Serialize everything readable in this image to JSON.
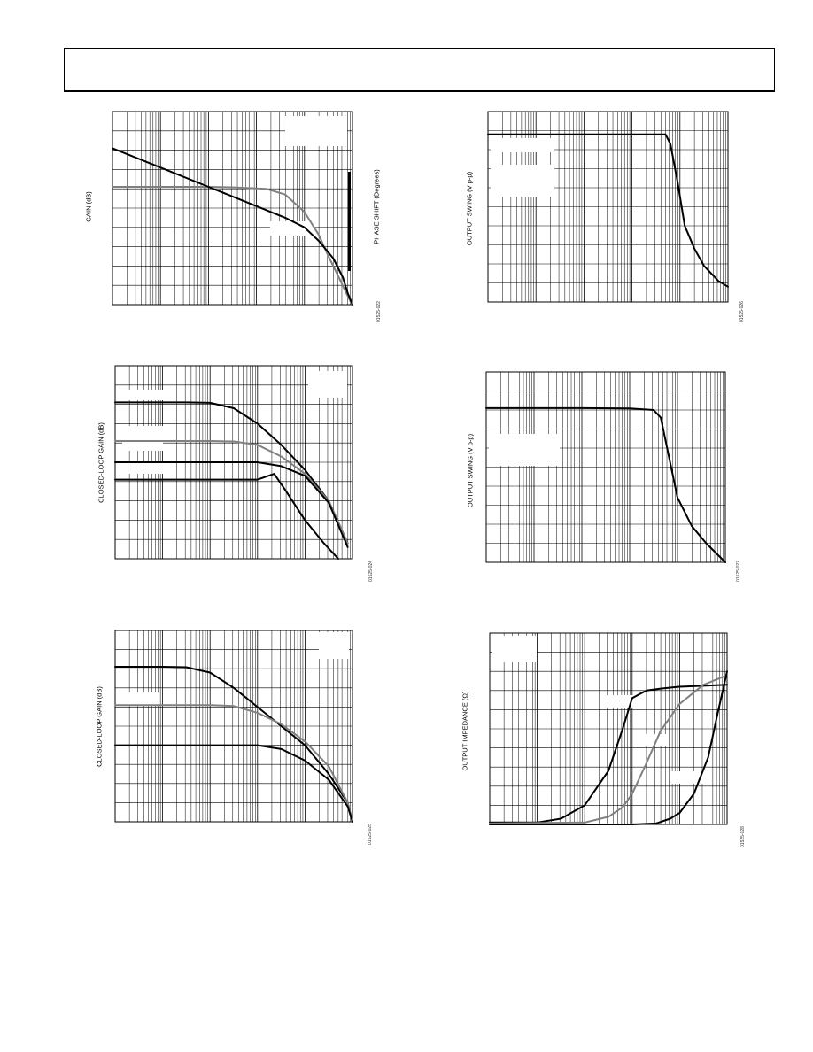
{
  "colors": {
    "ink": "#000000",
    "gray_trace": "#808080",
    "grid": "#000000",
    "blank": "#ffffff"
  },
  "charts": [
    {
      "id": "fig22",
      "ylabel": "GAIN (dB)",
      "y2label": "PHASE SHIFT (Degrees)",
      "figure_no": "01525-022"
    },
    {
      "id": "fig23",
      "ylabel": "CLOSED-LOOP GAIN (dB)",
      "figure_no": "01525-024"
    },
    {
      "id": "fig24",
      "ylabel": "CLOSED-LOOP GAIN (dB)",
      "figure_no": "01525-025"
    },
    {
      "id": "fig26",
      "ylabel": "OUTPUT SWING (V p-p)",
      "figure_no": "01525-026"
    },
    {
      "id": "fig27",
      "ylabel": "OUTPUT SWING (V p-p)",
      "figure_no": "01525-027"
    },
    {
      "id": "fig28",
      "ylabel": "OUTPUT IMPEDANCE (Ω)",
      "figure_no": "01525-028"
    }
  ],
  "chart_data": [
    {
      "type": "line",
      "chart": "fig22",
      "x_scale": "log",
      "xlim": [
        0,
        5
      ],
      "ylim": [
        0,
        10
      ],
      "grid": true,
      "series": [
        {
          "color": "gray",
          "x": [
            0,
            1,
            2,
            2.5,
            3.2,
            3.6,
            4,
            4.3,
            4.5,
            4.7,
            4.85,
            4.95,
            5
          ],
          "y": [
            6.1,
            6.1,
            6.1,
            6.08,
            6.0,
            5.7,
            4.8,
            3.6,
            2.5,
            1.5,
            0.7,
            0.2,
            0
          ]
        },
        {
          "color": "black",
          "x": [
            0,
            1,
            2,
            3,
            3.6,
            4,
            4.3,
            4.6,
            4.8,
            4.9,
            5
          ],
          "y": [
            8.1,
            7.1,
            6.1,
            5.1,
            4.5,
            4.0,
            3.3,
            2.4,
            1.4,
            0.6,
            0
          ]
        }
      ]
    },
    {
      "type": "line",
      "chart": "fig23",
      "x_scale": "log",
      "xlim": [
        0,
        5
      ],
      "ylim": [
        0,
        10
      ],
      "grid": true,
      "series": [
        {
          "color": "black",
          "x": [
            0,
            1,
            1.5,
            2,
            2.5,
            3,
            3.5,
            4,
            4.5,
            4.9
          ],
          "y": [
            8.1,
            8.1,
            8.1,
            8.08,
            7.8,
            7.0,
            5.9,
            4.6,
            3.0,
            0.8
          ]
        },
        {
          "color": "gray",
          "x": [
            0,
            2,
            2.5,
            3,
            3.5,
            4,
            4.5,
            4.9
          ],
          "y": [
            6.1,
            6.1,
            6.08,
            5.9,
            5.3,
            4.4,
            3.0,
            0.8
          ]
        },
        {
          "color": "black",
          "x": [
            0,
            2,
            2.5,
            3,
            3.5,
            4,
            4.5,
            4.9
          ],
          "y": [
            5.0,
            5.0,
            5.0,
            5.0,
            4.8,
            4.3,
            2.9,
            0.6
          ]
        },
        {
          "color": "black",
          "x": [
            0,
            2,
            2.5,
            3,
            3.35,
            3.6,
            4,
            4.4,
            4.7
          ],
          "y": [
            4.1,
            4.1,
            4.1,
            4.1,
            4.4,
            3.5,
            2.0,
            0.8,
            0
          ]
        }
      ]
    },
    {
      "type": "line",
      "chart": "fig24",
      "x_scale": "log",
      "xlim": [
        0,
        5
      ],
      "ylim": [
        0,
        10
      ],
      "grid": true,
      "series": [
        {
          "color": "black",
          "x": [
            0,
            1,
            1.5,
            2,
            2.5,
            3,
            3.5,
            4,
            4.5,
            4.9,
            5
          ],
          "y": [
            8.1,
            8.1,
            8.08,
            7.8,
            7.0,
            6.0,
            5.0,
            4.0,
            2.5,
            1.0,
            0
          ]
        },
        {
          "color": "gray",
          "x": [
            0,
            2,
            2.5,
            3,
            3.5,
            4,
            4.5,
            4.9,
            5
          ],
          "y": [
            6.1,
            6.1,
            6.05,
            5.7,
            5.1,
            4.2,
            2.9,
            1.0,
            0
          ]
        },
        {
          "color": "black",
          "x": [
            0,
            2,
            2.5,
            3,
            3.5,
            4,
            4.5,
            4.9,
            5
          ],
          "y": [
            4.0,
            4.0,
            4.0,
            4.0,
            3.8,
            3.2,
            2.2,
            0.8,
            0
          ]
        }
      ]
    },
    {
      "type": "line",
      "chart": "fig26",
      "x_scale": "log",
      "xlim": [
        0,
        5
      ],
      "ylim": [
        0,
        10
      ],
      "grid": true,
      "series": [
        {
          "color": "black",
          "x": [
            0,
            1,
            2,
            3,
            3.7,
            3.8,
            3.95,
            4.1,
            4.3,
            4.5,
            4.8,
            5
          ],
          "y": [
            8.8,
            8.8,
            8.8,
            8.8,
            8.8,
            8.3,
            6.3,
            4.0,
            2.8,
            1.9,
            1.1,
            0.8
          ]
        }
      ]
    },
    {
      "type": "line",
      "chart": "fig27",
      "x_scale": "log",
      "xlim": [
        0,
        5
      ],
      "ylim": [
        0,
        10
      ],
      "grid": true,
      "series": [
        {
          "color": "black",
          "x": [
            0,
            1,
            2,
            3,
            3.5,
            3.65,
            3.8,
            4.0,
            4.3,
            4.6,
            5
          ],
          "y": [
            8.1,
            8.1,
            8.1,
            8.08,
            8.0,
            7.6,
            5.8,
            3.4,
            1.9,
            1.0,
            0
          ]
        }
      ]
    },
    {
      "type": "line",
      "chart": "fig28",
      "x_scale": "log",
      "xlim": [
        0,
        5
      ],
      "ylim": [
        0,
        10
      ],
      "grid": true,
      "series": [
        {
          "color": "black",
          "x": [
            0,
            1,
            1.5,
            2,
            2.5,
            2.8,
            3.0,
            3.3,
            3.6,
            4,
            5
          ],
          "y": [
            0.1,
            0.1,
            0.3,
            1.0,
            2.8,
            5.0,
            6.6,
            7.0,
            7.1,
            7.2,
            7.3
          ]
        },
        {
          "color": "gray",
          "x": [
            0,
            2,
            2.5,
            2.8,
            3.0,
            3.3,
            3.6,
            4.0,
            4.5,
            5
          ],
          "y": [
            0.05,
            0.1,
            0.4,
            0.9,
            1.6,
            3.2,
            4.9,
            6.3,
            7.3,
            7.8
          ]
        },
        {
          "color": "black",
          "x": [
            0,
            2,
            3,
            3.5,
            3.8,
            4.0,
            4.3,
            4.6,
            4.8,
            5
          ],
          "y": [
            0,
            0,
            0,
            0.05,
            0.3,
            0.6,
            1.6,
            3.5,
            5.8,
            8.0
          ]
        }
      ]
    }
  ]
}
